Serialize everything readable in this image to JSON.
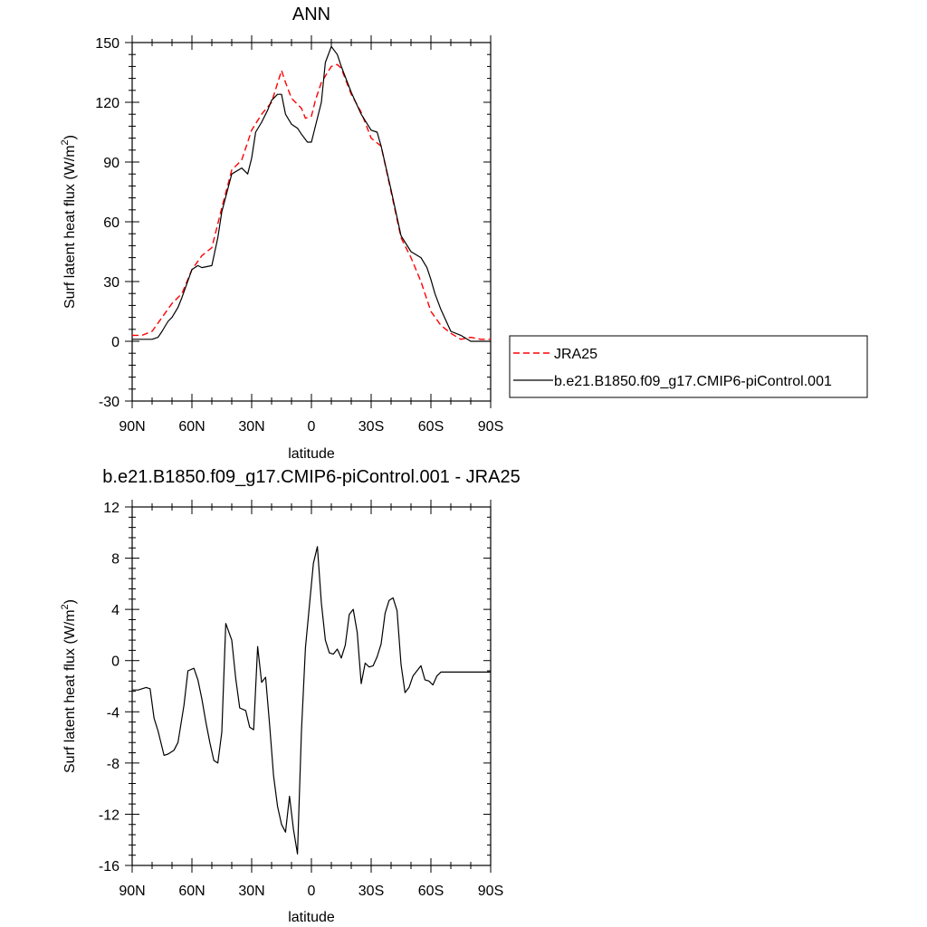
{
  "chart_data": [
    {
      "type": "line",
      "title": "ANN",
      "xlabel": "latitude",
      "ylabel": "Surf latent heat flux (W/m",
      "ylabel_superscript": "2",
      "ylabel_suffix": ")",
      "xlim": [
        90,
        -90
      ],
      "ylim": [
        -30,
        150
      ],
      "x_ticks": [
        90,
        60,
        30,
        0,
        -30,
        -60,
        -90
      ],
      "x_tick_labels": [
        "90N",
        "60N",
        "30N",
        "0",
        "30S",
        "60S",
        "90S"
      ],
      "y_ticks": [
        -30,
        0,
        30,
        60,
        90,
        120,
        150
      ],
      "y_tick_labels": [
        "-30",
        "0",
        "30",
        "60",
        "90",
        "120",
        "150"
      ],
      "grid": false,
      "legend_position": "right",
      "series": [
        {
          "name": "JRA25",
          "color": "#ff0000",
          "dashed": true,
          "x": [
            90,
            85,
            80,
            75,
            70,
            65,
            60,
            55,
            50,
            45,
            40,
            35,
            30,
            25,
            20,
            15,
            13,
            10,
            5,
            3,
            0,
            -2,
            -5,
            -10,
            -13,
            -15,
            -20,
            -25,
            -30,
            -35,
            -40,
            -45,
            -50,
            -55,
            -60,
            -65,
            -70,
            -75,
            -80,
            -85,
            -90
          ],
          "y": [
            3,
            3,
            5,
            12,
            19,
            24,
            36,
            43,
            47,
            67,
            86,
            91,
            106,
            114,
            120,
            136,
            130,
            122,
            117,
            112,
            113,
            121,
            130,
            138,
            139,
            137,
            124,
            115,
            102,
            98,
            75,
            52,
            42,
            30,
            15,
            8,
            4,
            1,
            2,
            1,
            1
          ]
        },
        {
          "name": "b.e21.B1850.f09_g17.CMIP6-piControl.001",
          "color": "#000000",
          "dashed": false,
          "x": [
            90,
            85,
            80,
            77,
            75,
            72,
            70,
            67,
            65,
            60,
            57,
            55,
            50,
            47,
            45,
            40,
            35,
            32,
            30,
            28,
            25,
            22,
            20,
            17,
            15,
            13,
            10,
            7,
            5,
            2,
            0,
            -2,
            -5,
            -7,
            -10,
            -13,
            -15,
            -20,
            -25,
            -30,
            -33,
            -35,
            -40,
            -45,
            -50,
            -55,
            -58,
            -60,
            -62,
            -65,
            -70,
            -75,
            -80,
            -85,
            -90
          ],
          "y": [
            1,
            1,
            1,
            2,
            5,
            10,
            12,
            17,
            22,
            36,
            38,
            37,
            38,
            52,
            65,
            84,
            87,
            84,
            92,
            105,
            110,
            116,
            121,
            124,
            124,
            114,
            109,
            107,
            104,
            100,
            100,
            108,
            120,
            140,
            148,
            144,
            138,
            125,
            114,
            106,
            105,
            98,
            76,
            53,
            45,
            42,
            37,
            31,
            24,
            16,
            5,
            3,
            0,
            0,
            0
          ]
        }
      ]
    },
    {
      "type": "line",
      "title": "b.e21.B1850.f09_g17.CMIP6-piControl.001 - JRA25",
      "xlabel": "latitude",
      "ylabel": "Surf latent heat flux (W/m",
      "ylabel_superscript": "2",
      "ylabel_suffix": ")",
      "xlim": [
        90,
        -90
      ],
      "ylim": [
        -16,
        12
      ],
      "x_ticks": [
        90,
        60,
        30,
        0,
        -30,
        -60,
        -90
      ],
      "x_tick_labels": [
        "90N",
        "60N",
        "30N",
        "0",
        "30S",
        "60S",
        "90S"
      ],
      "y_ticks": [
        -16,
        -12,
        -8,
        -4,
        0,
        4,
        8,
        12
      ],
      "y_tick_labels": [
        "-16",
        "-12",
        "-8",
        "-4",
        "0",
        "4",
        "8",
        "12"
      ],
      "grid": false,
      "series": [
        {
          "color": "#000000",
          "dashed": false,
          "x": [
            90,
            87,
            85,
            83,
            81,
            79,
            77,
            74,
            72,
            69,
            67,
            64,
            62,
            59,
            57,
            55,
            53,
            51,
            49,
            47,
            45,
            43,
            40,
            38,
            36,
            33,
            31,
            29,
            27,
            25,
            23,
            21,
            19,
            17,
            15,
            13,
            11,
            9,
            7,
            5,
            3,
            1,
            -1,
            -3,
            -5,
            -7,
            -9,
            -11,
            -13,
            -15,
            -17,
            -19,
            -21,
            -23,
            -25,
            -27,
            -29,
            -31,
            -33,
            -35,
            -37,
            -39,
            -41,
            -43,
            -45,
            -47,
            -49,
            -51,
            -53,
            -55,
            -57,
            -59,
            -61,
            -63,
            -65,
            -67,
            -69,
            -71,
            -73,
            -75,
            -77,
            -79,
            -81,
            -83,
            -85,
            -87,
            -89,
            -90
          ],
          "y": [
            -2.3,
            -2.3,
            -2.2,
            -2.1,
            -2.2,
            -4.5,
            -5.5,
            -7.4,
            -7.3,
            -7,
            -6.4,
            -3.5,
            -0.8,
            -0.6,
            -1.5,
            -3,
            -4.8,
            -6.4,
            -7.8,
            -8,
            -5.6,
            2.9,
            1.6,
            -1.4,
            -3.7,
            -3.9,
            -5.2,
            -5.4,
            1.1,
            -1.7,
            -1.3,
            -5,
            -9,
            -11.4,
            -12.8,
            -13.4,
            -10.6,
            -13.2,
            -15.1,
            -5.5,
            1,
            4.3,
            7.6,
            8.9,
            4.5,
            1.6,
            0.6,
            0.5,
            0.9,
            0.2,
            1.2,
            3.6,
            4,
            2.2,
            -1.8,
            -0.2,
            -0.5,
            -0.4,
            0.3,
            1.3,
            3.7,
            4.7,
            4.9,
            3.9,
            -0.3,
            -2.5,
            -2.1,
            -1.2,
            -0.8,
            -0.4,
            -1.5,
            -1.6,
            -1.9,
            -1.2,
            -0.9,
            -0.9,
            -0.9,
            -0.9,
            -0.9,
            -0.9,
            -0.9,
            -0.9,
            -0.9,
            -0.9,
            -0.9,
            -0.9,
            -0.9,
            -0.9
          ]
        }
      ]
    }
  ]
}
